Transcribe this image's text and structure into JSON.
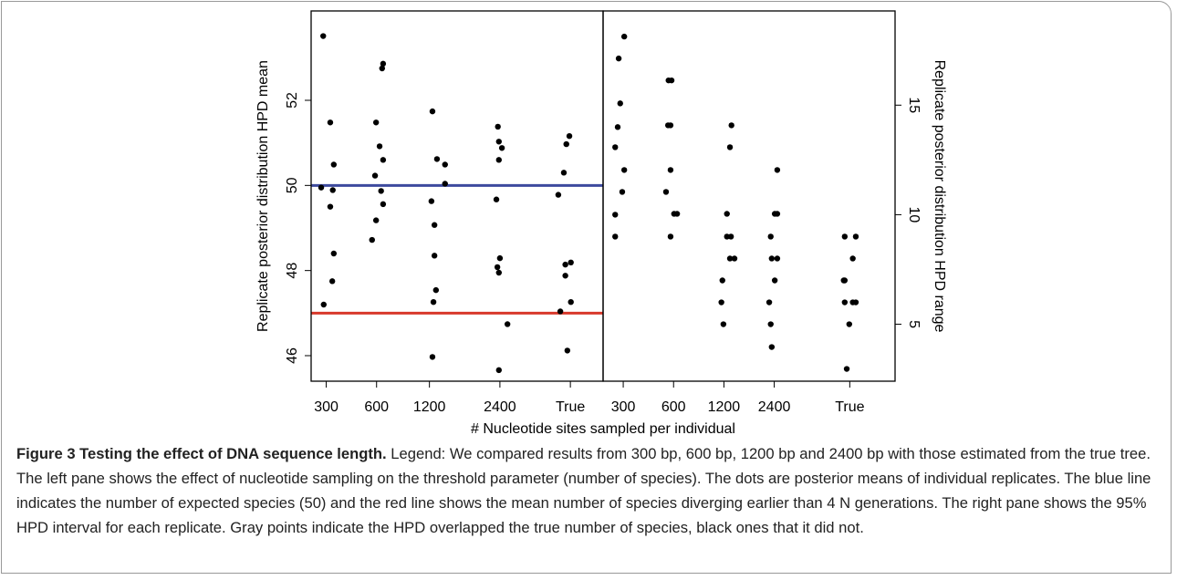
{
  "chart_data": [
    {
      "type": "scatter",
      "ylabel": "Replicate posterior distribution HPD mean",
      "xlabel": "# Nucleotide sites sampled per individual",
      "yaxis_side": "left",
      "color": "#000000",
      "xlim": [
        0.7,
        6.5
      ],
      "ylim": [
        45.4,
        54.1
      ],
      "xticks": [
        {
          "value": 1,
          "label": "300"
        },
        {
          "value": 2,
          "label": "600"
        },
        {
          "value": 3.05,
          "label": "1200"
        },
        {
          "value": 4.45,
          "label": "2400"
        },
        {
          "value": 5.85,
          "label": "True"
        }
      ],
      "yticks": [
        46,
        48,
        50,
        52
      ],
      "hlines": [
        {
          "value": 50,
          "color": "#3d4a9e"
        },
        {
          "value": 47,
          "color": "#d8392b"
        }
      ],
      "x": [
        0.94,
        1.08,
        1.15,
        0.9,
        1.13,
        1.08,
        1.15,
        1.12,
        0.95,
        2.13,
        2.11,
        1.99,
        2.06,
        2.13,
        1.97,
        2.09,
        2.13,
        1.99,
        1.91,
        3.11,
        3.2,
        3.36,
        3.36,
        3.09,
        3.15,
        3.15,
        3.18,
        3.13,
        3.11,
        4.41,
        4.43,
        4.49,
        4.43,
        4.38,
        4.45,
        4.4,
        4.43,
        4.6,
        4.43,
        5.83,
        5.77,
        5.72,
        5.61,
        5.86,
        5.75,
        5.75,
        5.86,
        5.65,
        5.79
      ],
      "values": [
        53.51,
        51.48,
        50.49,
        49.95,
        49.89,
        49.5,
        48.4,
        47.75,
        47.2,
        52.86,
        52.75,
        51.48,
        50.92,
        50.6,
        50.23,
        49.87,
        49.56,
        49.18,
        48.72,
        51.74,
        50.62,
        50.49,
        50.04,
        49.63,
        49.07,
        48.35,
        47.54,
        47.26,
        45.97,
        51.38,
        51.03,
        50.88,
        50.6,
        49.67,
        48.29,
        48.08,
        47.95,
        46.74,
        45.66,
        51.16,
        50.97,
        50.3,
        49.78,
        48.19,
        48.14,
        47.88,
        47.26,
        47.04,
        46.12
      ]
    },
    {
      "type": "scatter",
      "ylabel": "Replicate posterior distribution HPD range",
      "yaxis_side": "right",
      "color": "#000000",
      "xlim": [
        0.6,
        6.4
      ],
      "ylim": [
        2.4,
        19.3
      ],
      "xticks": [
        {
          "value": 1,
          "label": "300"
        },
        {
          "value": 2,
          "label": "600"
        },
        {
          "value": 3,
          "label": "1200"
        },
        {
          "value": 4,
          "label": "2400"
        },
        {
          "value": 5.5,
          "label": "True"
        }
      ],
      "yticks": [
        5,
        10,
        15
      ],
      "x": [
        1.02,
        0.91,
        0.94,
        0.89,
        0.84,
        1.02,
        0.98,
        0.84,
        0.84,
        1.9,
        1.96,
        1.89,
        1.94,
        1.94,
        1.85,
        2.01,
        2.07,
        1.94,
        3.15,
        3.12,
        3.06,
        3.06,
        3.14,
        3.12,
        3.21,
        2.97,
        2.95,
        2.99,
        4.06,
        4.01,
        4.06,
        3.93,
        4.06,
        3.95,
        4.01,
        3.9,
        3.93,
        3.95,
        5.4,
        5.62,
        5.56,
        5.4,
        5.38,
        5.4,
        5.56,
        5.62,
        5.49,
        5.44
      ],
      "values": [
        18.13,
        17.13,
        15.08,
        14.0,
        13.08,
        12.04,
        11.04,
        10.0,
        9.0,
        16.13,
        16.13,
        14.08,
        14.08,
        12.04,
        11.04,
        10.04,
        10.04,
        9.0,
        14.08,
        13.08,
        10.04,
        9.0,
        9.0,
        8.0,
        8.0,
        7.0,
        6.0,
        5.0,
        12.04,
        10.04,
        10.04,
        9.0,
        8.0,
        8.0,
        7.0,
        6.0,
        5.0,
        3.96,
        9.0,
        9.0,
        8.0,
        7.0,
        7.0,
        6.0,
        6.0,
        6.0,
        5.0,
        2.96
      ]
    }
  ],
  "caption": {
    "label": "Figure 3 Testing the effect of DNA sequence length.",
    "text": "Legend: We compared results from 300 bp, 600 bp, 1200 bp and 2400 bp with those estimated from the true tree. The left pane shows the effect of nucleotide sampling on the threshold parameter (number of species). The dots are posterior means of individual replicates. The blue line indicates the number of expected species (50) and the red line shows the mean number of species diverging earlier than 4 N generations. The right pane shows the 95% HPD interval for each replicate. Gray points indicate the HPD overlapped the true number of species, black ones that it did not."
  }
}
